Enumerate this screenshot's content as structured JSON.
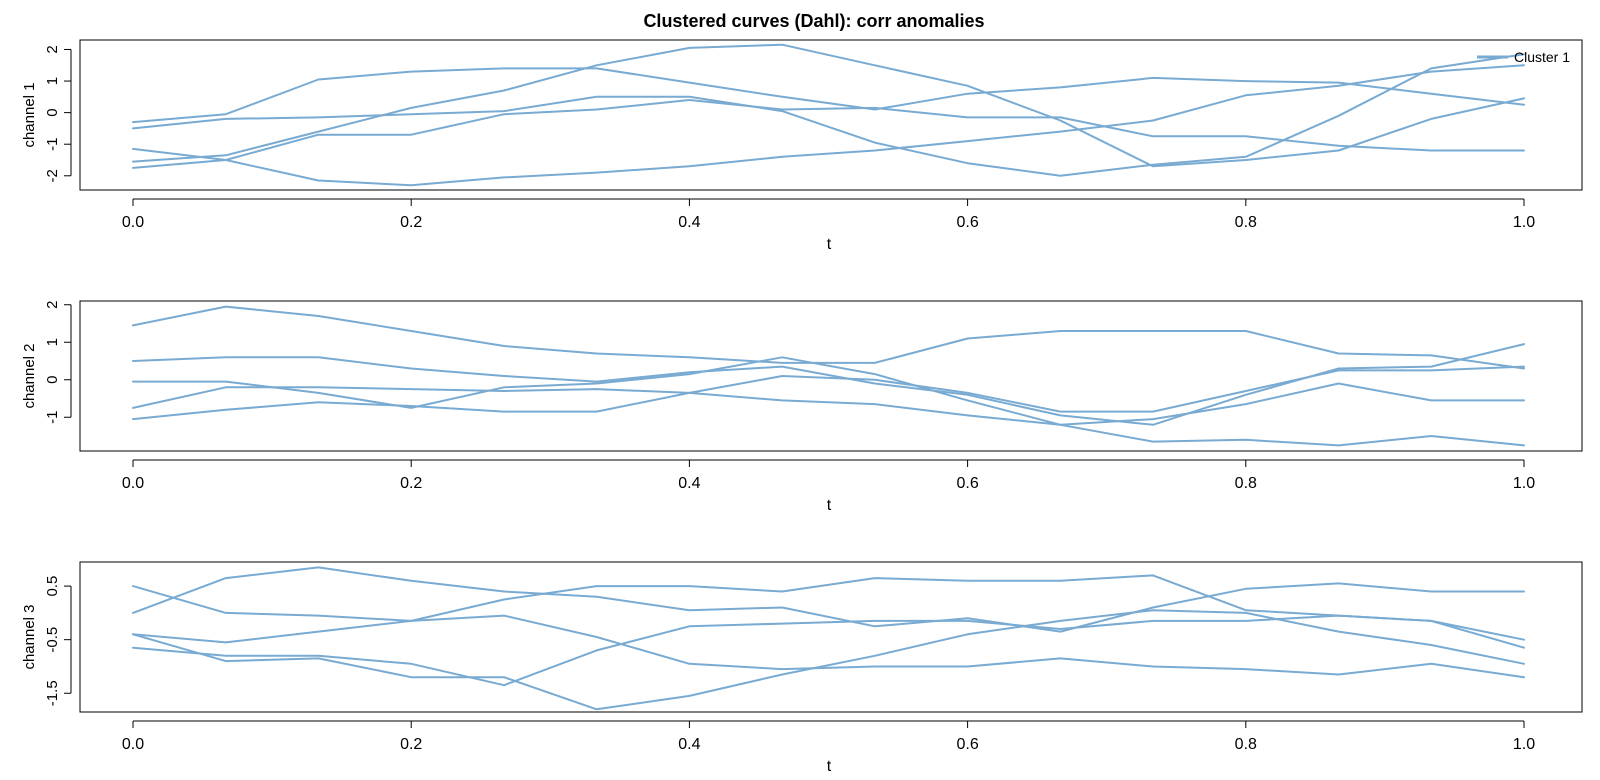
{
  "chart_data": {
    "type": "line",
    "title": "Clustered curves (Dahl): corr anomalies",
    "legend": {
      "position": "top-right",
      "entries": [
        {
          "label": "Cluster 1",
          "color": "#78AAD2"
        }
      ]
    },
    "x": [
      0,
      0.0667,
      0.1333,
      0.2,
      0.2667,
      0.3333,
      0.4,
      0.4667,
      0.5333,
      0.6,
      0.6667,
      0.7333,
      0.8,
      0.8667,
      0.9333,
      1.0
    ],
    "xticks": [
      "0.0",
      "0.2",
      "0.4",
      "0.6",
      "0.8",
      "1.0"
    ],
    "xtick_values": [
      0,
      0.2,
      0.4,
      0.6,
      0.8,
      1.0
    ],
    "panels": [
      {
        "ylabel": "channel 1",
        "xlabel": "t",
        "ylim": [
          -2.45,
          2.3
        ],
        "yticks": [
          "-2",
          "-1",
          "0",
          "1",
          "2"
        ],
        "ytick_values": [
          -2,
          -1,
          0,
          1,
          2
        ],
        "series": [
          {
            "values": [
              -0.3,
              -0.05,
              1.05,
              1.3,
              1.4,
              1.4,
              0.95,
              0.5,
              0.1,
              0.6,
              0.8,
              1.1,
              1.0,
              0.95,
              0.6,
              0.25
            ]
          },
          {
            "values": [
              -0.5,
              -0.2,
              -0.15,
              -0.05,
              0.05,
              0.5,
              0.5,
              0.05,
              -0.95,
              -1.6,
              -2.0,
              -1.65,
              -1.4,
              -0.1,
              1.4,
              1.85
            ]
          },
          {
            "values": [
              -1.55,
              -1.35,
              -0.6,
              0.15,
              0.7,
              1.5,
              2.05,
              2.15,
              1.5,
              0.85,
              -0.25,
              -1.7,
              -1.5,
              -1.2,
              -0.2,
              0.45
            ]
          },
          {
            "values": [
              -1.15,
              -1.5,
              -2.15,
              -2.3,
              -2.05,
              -1.9,
              -1.7,
              -1.4,
              -1.2,
              -0.9,
              -0.6,
              -0.25,
              0.55,
              0.85,
              1.3,
              1.5
            ]
          },
          {
            "values": [
              -1.75,
              -1.5,
              -0.7,
              -0.7,
              -0.05,
              0.1,
              0.4,
              0.1,
              0.15,
              -0.15,
              -0.15,
              -0.75,
              -0.75,
              -1.05,
              -1.2,
              -1.2
            ]
          }
        ]
      },
      {
        "ylabel": "channel 2",
        "xlabel": "t",
        "ylim": [
          -1.9,
          2.1
        ],
        "yticks": [
          "-1",
          "0",
          "1",
          "2"
        ],
        "ytick_values": [
          -1,
          0,
          1,
          2
        ],
        "series": [
          {
            "values": [
              1.45,
              1.95,
              1.7,
              1.3,
              0.9,
              0.7,
              0.6,
              0.45,
              0.45,
              1.1,
              1.3,
              1.3,
              1.3,
              0.7,
              0.65,
              0.3
            ]
          },
          {
            "values": [
              0.5,
              0.6,
              0.6,
              0.3,
              0.1,
              -0.05,
              0.2,
              0.35,
              -0.1,
              -0.4,
              -0.95,
              -1.2,
              -0.4,
              0.3,
              0.35,
              0.95
            ]
          },
          {
            "values": [
              -0.05,
              -0.05,
              -0.35,
              -0.75,
              -0.2,
              -0.1,
              0.15,
              0.6,
              0.15,
              -0.55,
              -1.2,
              -1.65,
              -1.6,
              -1.75,
              -1.5,
              -1.75
            ]
          },
          {
            "values": [
              -0.75,
              -0.2,
              -0.2,
              -0.25,
              -0.3,
              -0.25,
              -0.35,
              -0.55,
              -0.65,
              -0.95,
              -1.2,
              -1.05,
              -0.65,
              -0.1,
              -0.55,
              -0.55
            ]
          },
          {
            "values": [
              -1.05,
              -0.8,
              -0.6,
              -0.7,
              -0.85,
              -0.85,
              -0.35,
              0.1,
              0.0,
              -0.35,
              -0.85,
              -0.85,
              -0.3,
              0.25,
              0.25,
              0.35
            ]
          }
        ]
      },
      {
        "ylabel": "channel 3",
        "xlabel": "t",
        "ylim": [
          -1.85,
          0.95
        ],
        "yticks": [
          "-1.5",
          "-0.5",
          "0.5"
        ],
        "ytick_values": [
          -1.5,
          -0.5,
          0.5
        ],
        "series": [
          {
            "values": [
              0.0,
              0.65,
              0.85,
              0.6,
              0.4,
              0.3,
              0.05,
              0.1,
              -0.25,
              -0.1,
              -0.35,
              0.1,
              0.45,
              0.55,
              0.4,
              0.4
            ]
          },
          {
            "values": [
              0.5,
              0.0,
              -0.05,
              -0.15,
              -0.05,
              -0.45,
              -0.95,
              -1.05,
              -1.0,
              -1.0,
              -0.85,
              -1.0,
              -1.05,
              -1.15,
              -0.95,
              -1.2
            ]
          },
          {
            "values": [
              -0.4,
              -0.55,
              -0.35,
              -0.15,
              0.25,
              0.5,
              0.5,
              0.4,
              0.65,
              0.6,
              0.6,
              0.7,
              0.05,
              -0.05,
              -0.15,
              -0.5
            ]
          },
          {
            "values": [
              -0.4,
              -0.9,
              -0.85,
              -1.2,
              -1.2,
              -1.8,
              -1.55,
              -1.15,
              -0.8,
              -0.4,
              -0.15,
              0.05,
              0.0,
              -0.35,
              -0.6,
              -0.95
            ]
          },
          {
            "values": [
              -0.65,
              -0.8,
              -0.8,
              -0.95,
              -1.35,
              -0.7,
              -0.25,
              -0.2,
              -0.15,
              -0.15,
              -0.3,
              -0.15,
              -0.15,
              -0.05,
              -0.15,
              -0.65
            ]
          }
        ]
      }
    ]
  }
}
